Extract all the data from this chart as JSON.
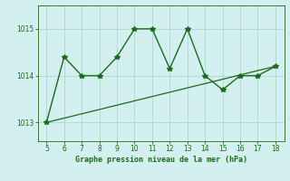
{
  "x": [
    5,
    6,
    7,
    8,
    9,
    10,
    11,
    12,
    13,
    14,
    15,
    16,
    17,
    18
  ],
  "y_line": [
    1013.0,
    1014.4,
    1014.0,
    1014.0,
    1014.4,
    1015.0,
    1015.0,
    1014.15,
    1015.0,
    1014.0,
    1013.7,
    1014.0,
    1014.0,
    1014.2
  ],
  "trend_x": [
    5,
    18
  ],
  "trend_y": [
    1013.0,
    1014.2
  ],
  "color": "#1a6b1a",
  "bg_color": "#d4efef",
  "grid_color": "#b0d8cc",
  "xlabel": "Graphe pression niveau de la mer (hPa)",
  "ylim": [
    1012.6,
    1015.5
  ],
  "xlim": [
    4.5,
    18.5
  ],
  "yticks": [
    1013,
    1014,
    1015
  ],
  "xticks": [
    5,
    6,
    7,
    8,
    9,
    10,
    11,
    12,
    13,
    14,
    15,
    16,
    17,
    18
  ]
}
